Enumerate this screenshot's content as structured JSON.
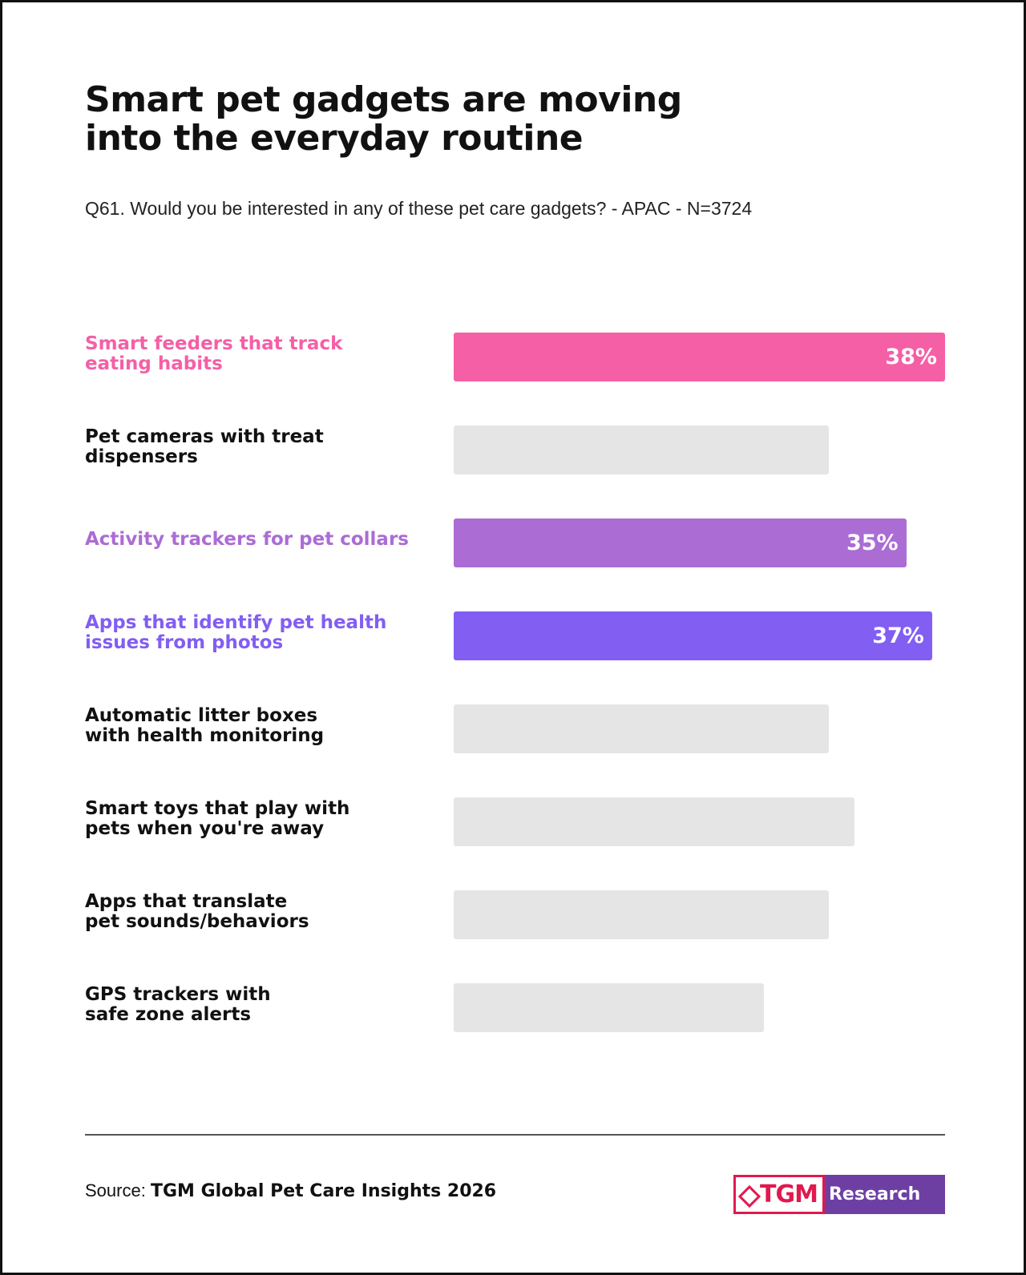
{
  "title_lines": [
    "Smart pet gadgets are moving",
    "into the everyday routine"
  ],
  "subtitle": "Q61. Would you be interested in any of these pet care gadgets? - APAC - N=3724",
  "colors": {
    "pink": "#f55fa6",
    "orchid": "#ab6cd4",
    "violet": "#825ef2",
    "muted": "#e5e5e5",
    "text_default": "#111111"
  },
  "chart_data": {
    "type": "bar",
    "orientation": "horizontal",
    "xlim": [
      0,
      38
    ],
    "categories": [
      [
        "Smart feeders that track",
        "eating habits"
      ],
      [
        "Pet cameras with treat",
        "dispensers"
      ],
      [
        "Activity trackers for pet collars"
      ],
      [
        "Apps that identify pet health",
        "issues from photos"
      ],
      [
        "Automatic litter boxes",
        "with health monitoring"
      ],
      [
        "Smart toys that play with",
        "pets when you're away"
      ],
      [
        "Apps that translate",
        "pet sounds/behaviors"
      ],
      [
        "GPS trackers with",
        "safe zone alerts"
      ]
    ],
    "values": [
      38,
      29,
      35,
      37,
      29,
      31,
      29,
      24
    ],
    "value_labels": [
      "38%",
      "",
      "35%",
      "37%",
      "",
      "",
      "",
      ""
    ],
    "highlight": [
      "pink",
      "muted",
      "orchid",
      "violet",
      "muted",
      "muted",
      "muted",
      "muted"
    ]
  },
  "footer": {
    "source_label": "Source:",
    "source_text": "TGM Global Pet Care Insights 2026",
    "logo_tgm": "TGM",
    "logo_research": "Research"
  }
}
